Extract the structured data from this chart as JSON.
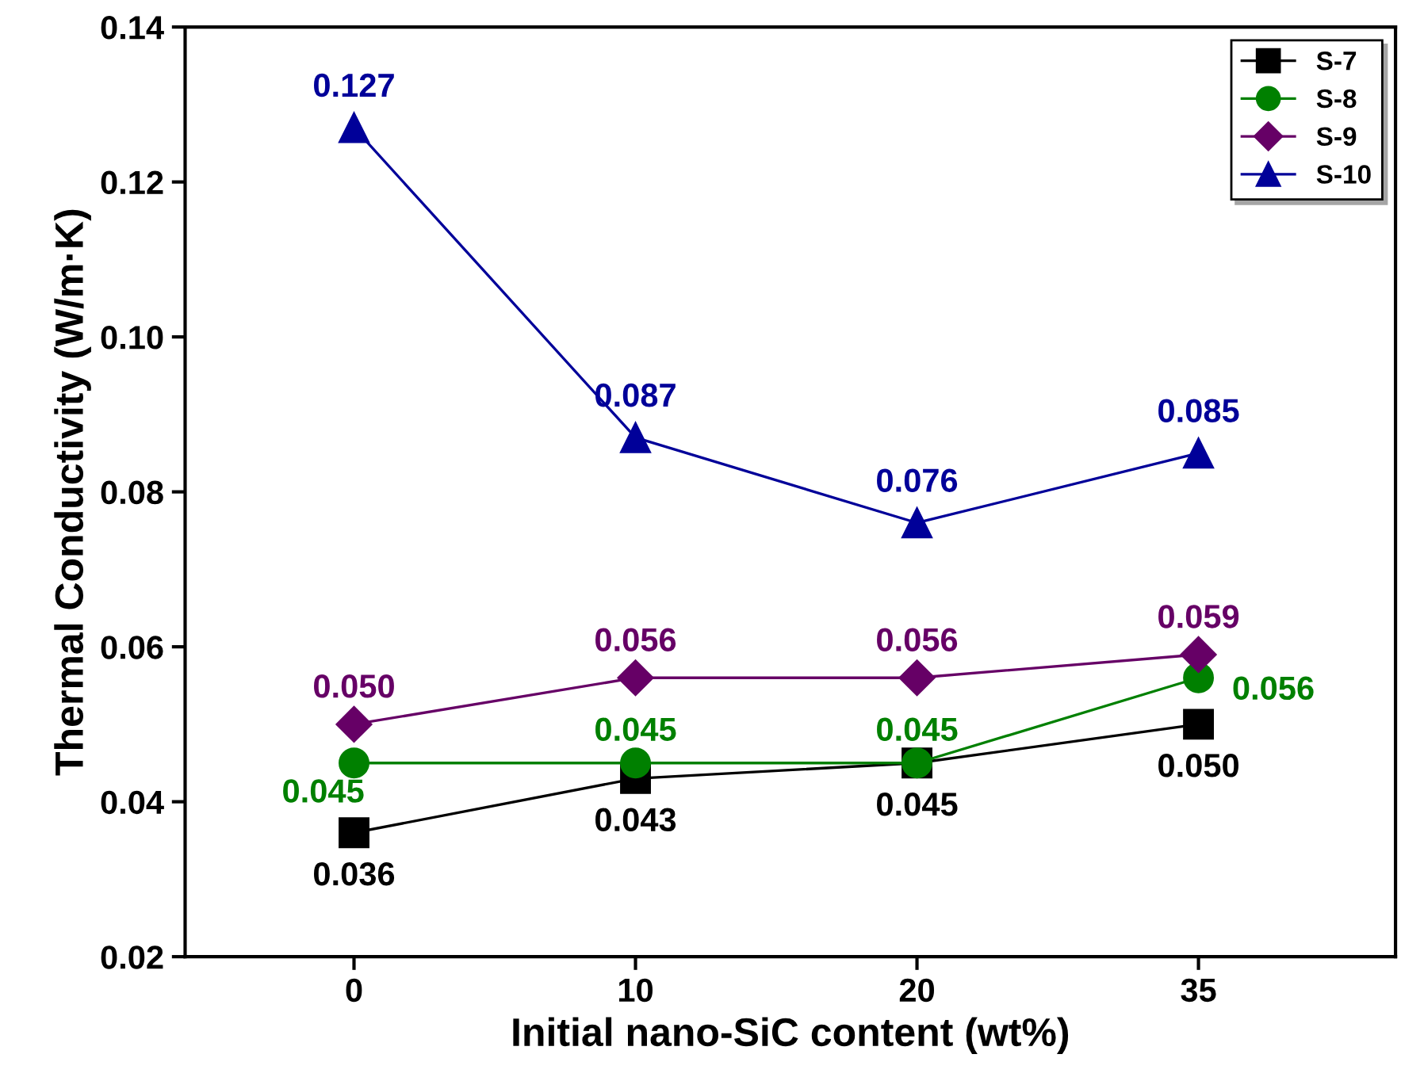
{
  "chart_data": {
    "type": "line",
    "xlabel": "Initial nano-SiC content (wt%)",
    "ylabel": "Thermal Conductivity (W/m·K)",
    "categories": [
      "0",
      "10",
      "20",
      "35"
    ],
    "series": [
      {
        "name": "S-7",
        "color": "#000000",
        "marker": "square",
        "values": [
          0.036,
          0.043,
          0.045,
          0.05
        ],
        "value_labels": [
          "0.036",
          "0.043",
          "0.045",
          "0.050"
        ]
      },
      {
        "name": "S-8",
        "color": "#008000",
        "marker": "circle",
        "values": [
          0.045,
          0.045,
          0.045,
          0.056
        ],
        "value_labels": [
          "0.045",
          "0.045",
          "0.045",
          "0.056"
        ]
      },
      {
        "name": "S-9",
        "color": "#660066",
        "marker": "diamond",
        "values": [
          0.05,
          0.056,
          0.056,
          0.059
        ],
        "value_labels": [
          "0.050",
          "0.056",
          "0.056",
          "0.059"
        ]
      },
      {
        "name": "S-10",
        "color": "#000099",
        "marker": "triangle",
        "values": [
          0.127,
          0.087,
          0.076,
          0.085
        ],
        "value_labels": [
          "0.127",
          "0.087",
          "0.076",
          "0.085"
        ]
      }
    ],
    "ylim": [
      0.02,
      0.14
    ],
    "yticks": [
      0.02,
      0.04,
      0.06,
      0.08,
      {
        "value": 0.1,
        "label": "0.10"
      },
      0.12,
      0.14
    ],
    "legend": "top right",
    "grid": false,
    "line_style": "solid"
  }
}
